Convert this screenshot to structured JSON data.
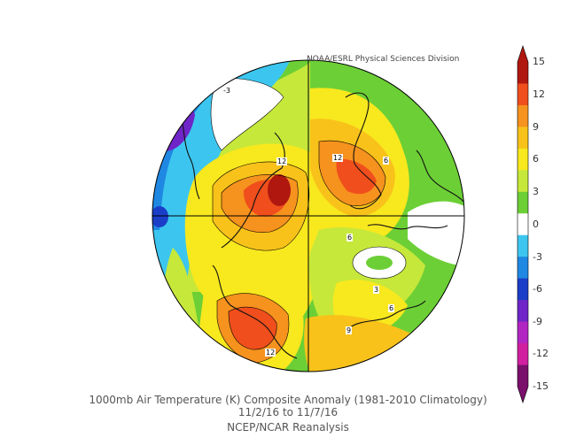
{
  "credit": "NOAA/ESRL Physical Sciences Division",
  "caption": {
    "line1": "1000mb Air Temperature (K) Composite Anomaly (1981-2010 Climatology)",
    "line2": "11/2/16   to 11/7/16",
    "line3": "NCEP/NCAR Reanalysis"
  },
  "colorbar": {
    "ticks": [
      "15",
      "12",
      "9",
      "6",
      "3",
      "0",
      "-3",
      "-6",
      "-9",
      "-12",
      "-15"
    ],
    "colors": [
      "#b0170f",
      "#f04e1c",
      "#f6921e",
      "#f8c21a",
      "#f8e81e",
      "#c6e83a",
      "#6ccf36",
      "#ffffff",
      "#3cc6ef",
      "#1f88e2",
      "#1b3ec8",
      "#6f25c8",
      "#b126c2",
      "#d21fa0",
      "#7a0f6c"
    ]
  },
  "contour_labels": [
    "-3",
    "12",
    "12",
    "6",
    "6",
    "3",
    "6",
    "9",
    "12"
  ]
}
